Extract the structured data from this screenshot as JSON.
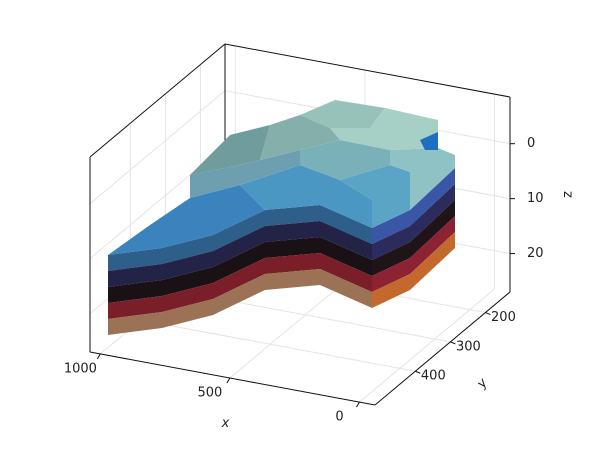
{
  "chart_data": {
    "type": "mesh3d",
    "xlabel": "x",
    "ylabel": "y",
    "zlabel": "z",
    "xlim": [
      -60,
      1040
    ],
    "xticks": [
      0,
      500,
      1000
    ],
    "ylim": [
      130,
      515
    ],
    "yticks": [
      200,
      300,
      400
    ],
    "zlim": [
      -8.5,
      27
    ],
    "zticks": [
      0,
      10,
      20
    ],
    "zreversed": true,
    "grid": true
  }
}
